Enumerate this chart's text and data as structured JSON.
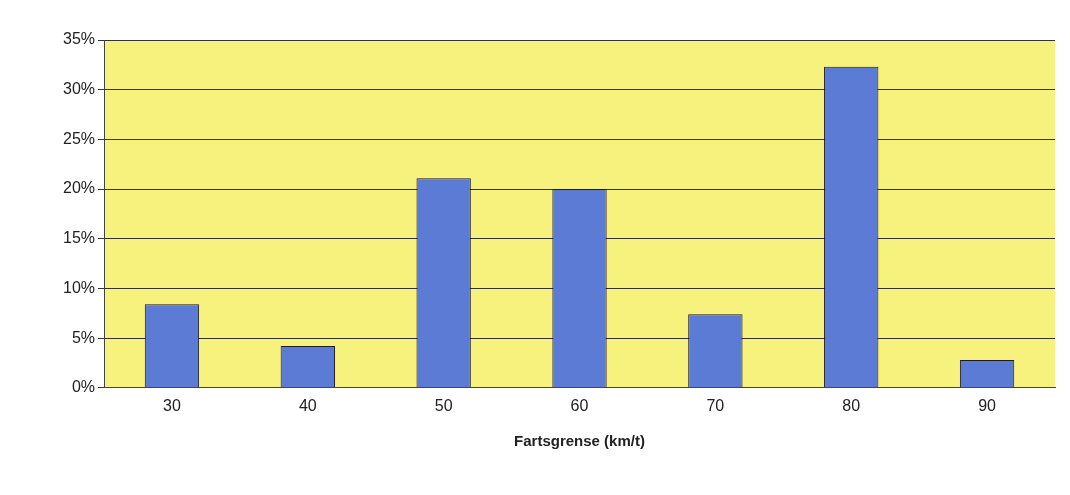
{
  "chart_data": {
    "type": "bar",
    "xlabel": "Fartsgrense (km/t)",
    "categories": [
      "30",
      "40",
      "50",
      "60",
      "70",
      "80",
      "90"
    ],
    "values": [
      8.4,
      4.2,
      21.1,
      20.0,
      7.4,
      32.3,
      2.8
    ],
    "color": "#5b7bd5",
    "ylim": [
      0,
      35
    ],
    "yticks": [
      {
        "value": 0,
        "label": "0%"
      },
      {
        "value": 5,
        "label": "5%"
      },
      {
        "value": 10,
        "label": "10%"
      },
      {
        "value": 15,
        "label": "15%"
      },
      {
        "value": 20,
        "label": "20%"
      },
      {
        "value": 25,
        "label": "25%"
      },
      {
        "value": 30,
        "label": "30%"
      },
      {
        "value": 35,
        "label": "35%"
      }
    ],
    "grid": "y",
    "legend": false
  }
}
